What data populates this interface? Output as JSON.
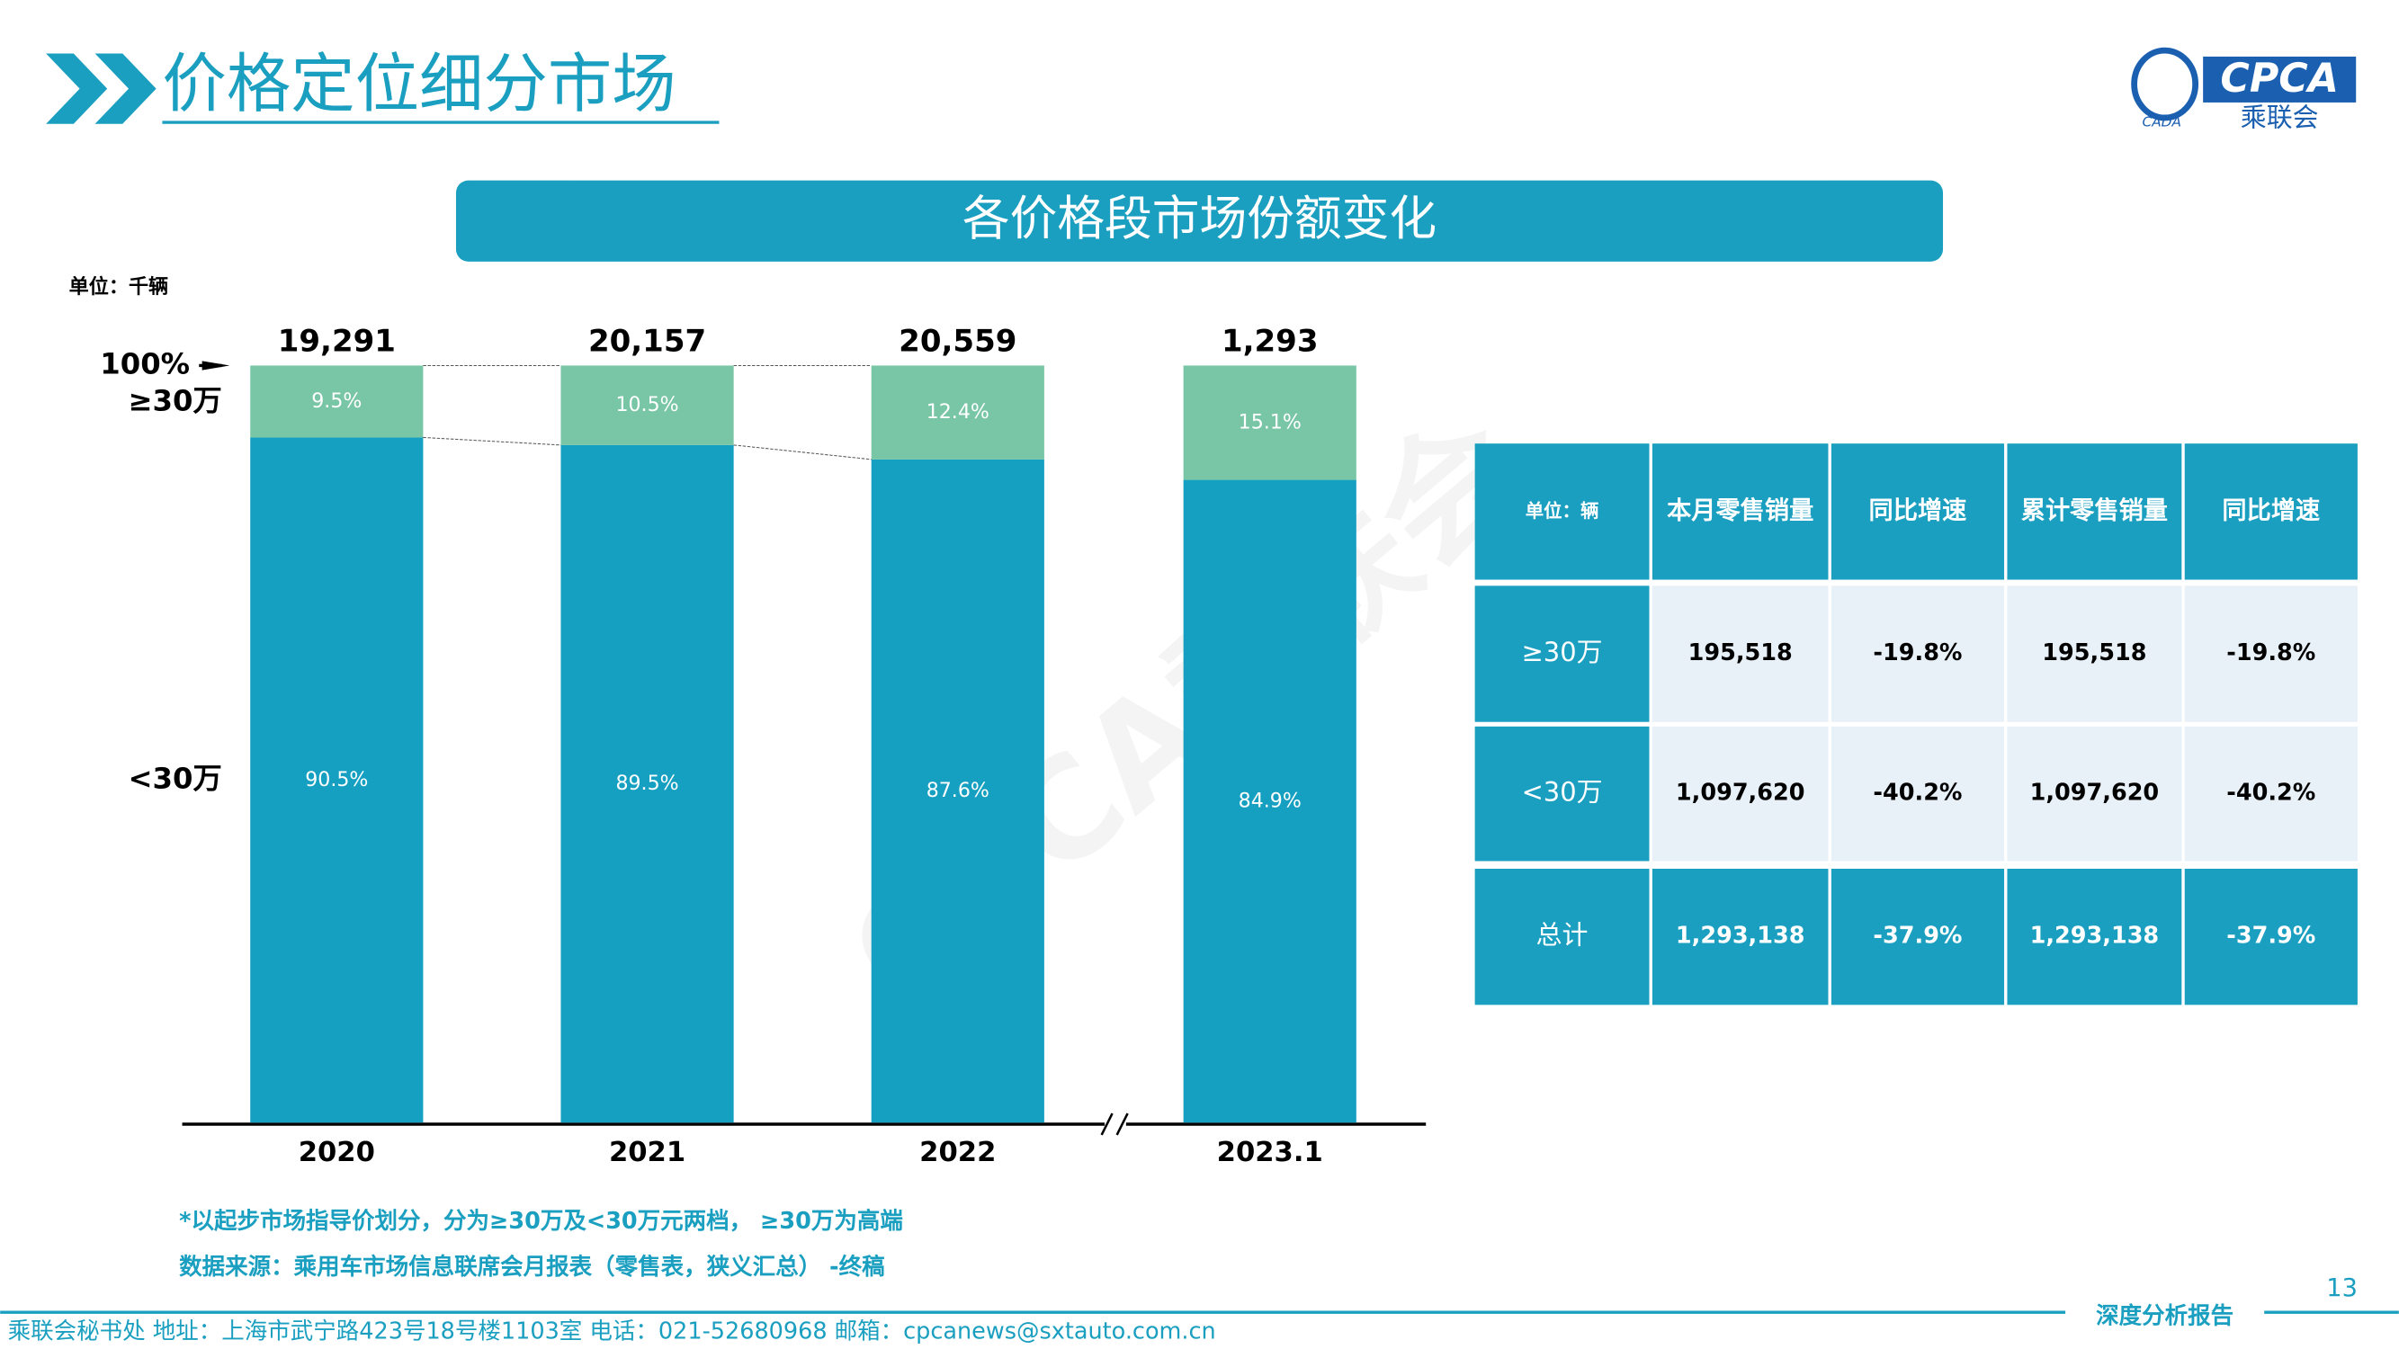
{
  "header": {
    "title": "价格定位细分市场",
    "logo_text": "CPCA",
    "logo_sub": "乘联会",
    "logo_mark": "CADA"
  },
  "chart_data": {
    "type": "stacked_bar",
    "title": "各价格段市场份额变化",
    "unit": "单位：千辆",
    "categories": [
      "2020",
      "2021",
      "2022",
      "2023.1"
    ],
    "series": [
      {
        "name": "<30万",
        "color": "#159fc1",
        "values": [
          90.5,
          89.5,
          87.6,
          84.9
        ],
        "value_labels": [
          "90.5%",
          "89.5%",
          "87.6%",
          "84.9%"
        ]
      },
      {
        "name": "≥30万",
        "color": "#79c6a6",
        "values": [
          9.5,
          10.5,
          12.4,
          15.1
        ],
        "value_labels": [
          "9.5%",
          "10.5%",
          "12.4%",
          "15.1%"
        ]
      }
    ],
    "totals": {
      "values": [
        19291,
        20157,
        20559,
        1293
      ],
      "value_labels": [
        "19,291",
        "20,157",
        "20,559",
        "1,293"
      ]
    },
    "ylim": [
      0,
      100
    ],
    "yticks": [
      {
        "value": 100,
        "label": "100%"
      }
    ]
  },
  "table": {
    "header": [
      "单位：辆",
      "本月零售销量",
      "同比增速",
      "累计零售销量",
      "同比增速"
    ],
    "rows": [
      [
        "≥30万",
        "195,518",
        "-19.8%",
        "195,518",
        "-19.8%"
      ],
      [
        "<30万",
        "1,097,620",
        "-40.2%",
        "1,097,620",
        "-40.2%"
      ],
      [
        "总计",
        "1,293,138",
        "-37.9%",
        "1,293,138",
        "-37.9%"
      ]
    ]
  },
  "notes": [
    "*以起步市场指导价划分，分为≥30万及<30万元两档， ≥30万为高端",
    "数据来源：乘用车市场信息联席会月报表（零售表，狭义汇总） -终稿"
  ],
  "watermark": "CPCA乘联会",
  "footer": {
    "address": "乘联会秘书处   地址：上海市武宁路423号18号楼1103室  电话：021-52680968   邮箱：cpcanews@sxtauto.com.cn",
    "page": "13",
    "tag": "深度分析报告"
  }
}
